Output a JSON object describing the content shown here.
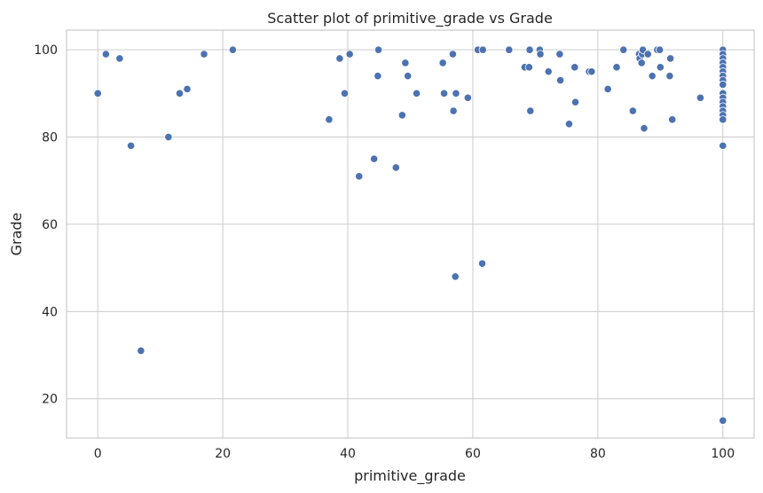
{
  "chart_data": {
    "type": "scatter",
    "title": "Scatter plot of primitive_grade vs Grade",
    "xlabel": "primitive_grade",
    "ylabel": "Grade",
    "xlim": [
      -5,
      105
    ],
    "ylim": [
      11,
      104.5
    ],
    "xticks": [
      0,
      20,
      40,
      60,
      80,
      100
    ],
    "yticks": [
      20,
      40,
      60,
      80,
      100
    ],
    "grid": true,
    "color": "#4c72b0",
    "points": [
      [
        0,
        90
      ],
      [
        1.3,
        99
      ],
      [
        3.5,
        98
      ],
      [
        5.3,
        78
      ],
      [
        6.9,
        31
      ],
      [
        11.3,
        80
      ],
      [
        13.1,
        90
      ],
      [
        14.3,
        91
      ],
      [
        17,
        99
      ],
      [
        21.6,
        100
      ],
      [
        37,
        84
      ],
      [
        38.7,
        98
      ],
      [
        39.5,
        90
      ],
      [
        40.3,
        99
      ],
      [
        41.8,
        71
      ],
      [
        44.2,
        75
      ],
      [
        44.8,
        94
      ],
      [
        44.9,
        100
      ],
      [
        47.7,
        73
      ],
      [
        48.7,
        85
      ],
      [
        49.2,
        97
      ],
      [
        49.6,
        94
      ],
      [
        51,
        90
      ],
      [
        55.2,
        97
      ],
      [
        55.4,
        90
      ],
      [
        56.8,
        99
      ],
      [
        56.9,
        86
      ],
      [
        57.2,
        48
      ],
      [
        57.3,
        90
      ],
      [
        59.2,
        89
      ],
      [
        60.8,
        100
      ],
      [
        61.5,
        51
      ],
      [
        61.6,
        100
      ],
      [
        65.8,
        100
      ],
      [
        68.3,
        96
      ],
      [
        69,
        96
      ],
      [
        69.1,
        100
      ],
      [
        69.2,
        86
      ],
      [
        70.7,
        100
      ],
      [
        70.8,
        99
      ],
      [
        72.1,
        95
      ],
      [
        73.9,
        99
      ],
      [
        74,
        93
      ],
      [
        75.4,
        83
      ],
      [
        76.3,
        96
      ],
      [
        76.4,
        88
      ],
      [
        78.6,
        95
      ],
      [
        79,
        95
      ],
      [
        81.6,
        91
      ],
      [
        83,
        96
      ],
      [
        84.1,
        100
      ],
      [
        85.6,
        86
      ],
      [
        86.6,
        99
      ],
      [
        86.7,
        98
      ],
      [
        87,
        97
      ],
      [
        87.1,
        99
      ],
      [
        87.2,
        100
      ],
      [
        87.4,
        82
      ],
      [
        88,
        99
      ],
      [
        88.7,
        94
      ],
      [
        89.5,
        100
      ],
      [
        89.9,
        100
      ],
      [
        90,
        96
      ],
      [
        91.5,
        94
      ],
      [
        91.6,
        98
      ],
      [
        91.9,
        84
      ],
      [
        96.4,
        89
      ],
      [
        100,
        100
      ],
      [
        100,
        99
      ],
      [
        100,
        98
      ],
      [
        100,
        97
      ],
      [
        100,
        96
      ],
      [
        100,
        95
      ],
      [
        100,
        94
      ],
      [
        100,
        93
      ],
      [
        100,
        92
      ],
      [
        100,
        90
      ],
      [
        100,
        89
      ],
      [
        100,
        88
      ],
      [
        100,
        87
      ],
      [
        100,
        86
      ],
      [
        100,
        85
      ],
      [
        100,
        84
      ],
      [
        100,
        78
      ],
      [
        100,
        15
      ]
    ]
  }
}
